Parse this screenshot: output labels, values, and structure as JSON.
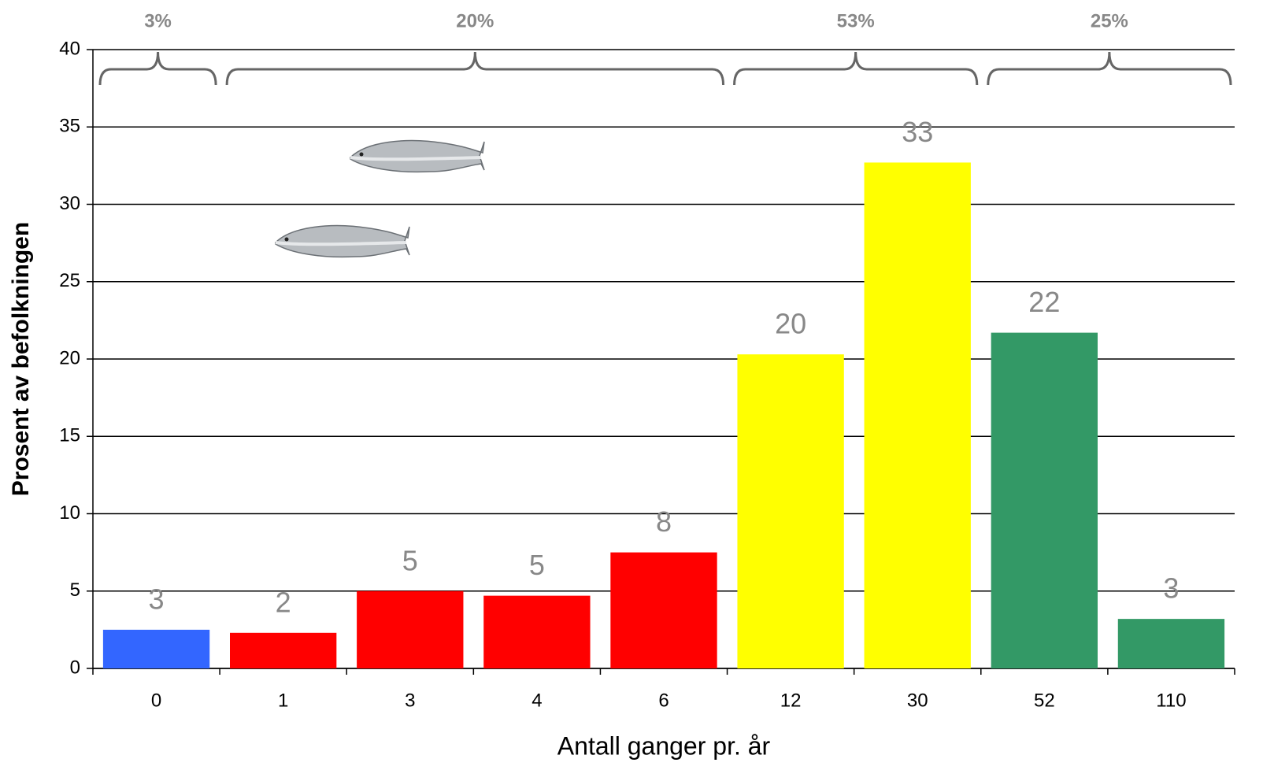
{
  "chart_data": {
    "type": "bar",
    "y_label": "Prosent av befolkningen",
    "x_label": "Antall ganger pr. år",
    "categories": [
      "0",
      "1",
      "3",
      "4",
      "6",
      "12",
      "30",
      "52",
      "110"
    ],
    "values": [
      2.5,
      2.3,
      5.0,
      4.7,
      7.5,
      20.3,
      32.7,
      21.7,
      3.2
    ],
    "value_labels": [
      "3",
      "2",
      "5",
      "5",
      "8",
      "20",
      "33",
      "22",
      "3"
    ],
    "colors": [
      "#3366ff",
      "#ff0000",
      "#ff0000",
      "#ff0000",
      "#ff0000",
      "#ffff00",
      "#ffff00",
      "#339966",
      "#339966"
    ],
    "ylim": [
      0,
      40
    ],
    "yticks": [
      0,
      5,
      10,
      15,
      20,
      25,
      30,
      35,
      40
    ],
    "grid": true,
    "braces": [
      {
        "label": "3%",
        "categories": [
          "0"
        ]
      },
      {
        "label": "20%",
        "categories": [
          "1",
          "3",
          "4",
          "6"
        ]
      },
      {
        "label": "53%",
        "categories": [
          "12",
          "30"
        ]
      },
      {
        "label": "25%",
        "categories": [
          "52",
          "110"
        ]
      }
    ]
  }
}
